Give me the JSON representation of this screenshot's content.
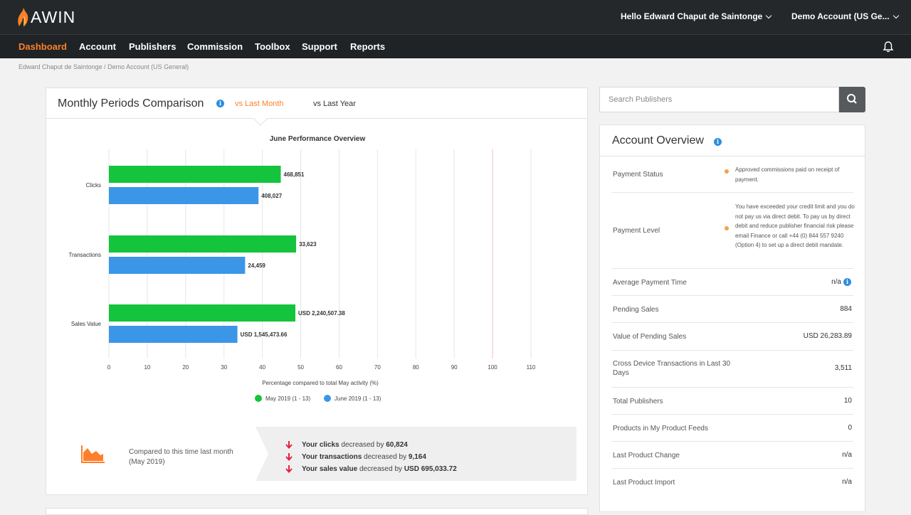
{
  "header": {
    "logo_text": "AWIN",
    "user_menu": "Hello Edward Chaput de Saintonge",
    "account_menu": "Demo Account (US Ge..."
  },
  "nav": {
    "items": [
      "Dashboard",
      "Account",
      "Publishers",
      "Commission",
      "Toolbox",
      "Support",
      "Reports"
    ],
    "active": "Dashboard"
  },
  "breadcrumb": "Edward Chaput de Saintonge / Demo Account (US General)",
  "comparison_panel": {
    "title": "Monthly Periods Comparison",
    "tabs": [
      "vs Last Month",
      "vs Last Year"
    ],
    "active_tab": "vs Last Month"
  },
  "chart_data": {
    "type": "bar",
    "orientation": "horizontal",
    "title": "June Performance Overview",
    "xlabel": "Percentage compared to total May activity (%)",
    "ylabel": "",
    "xlim": [
      0,
      110
    ],
    "xticks": [
      0,
      10,
      20,
      30,
      40,
      50,
      60,
      70,
      80,
      90,
      100,
      110
    ],
    "reference_line": 100,
    "categories": [
      "Clicks",
      "Transactions",
      "Sales Value"
    ],
    "series": [
      {
        "name": "May 2019 (1 - 13)",
        "color": "#14c43c",
        "values": [
          44.8,
          48.8,
          48.6
        ],
        "labels": [
          "468,851",
          "33,623",
          "USD 2,240,507.38"
        ]
      },
      {
        "name": "June 2019 (1 - 13)",
        "color": "#3c96e8",
        "values": [
          39.0,
          35.5,
          33.5
        ],
        "labels": [
          "408,027",
          "24,459",
          "USD 1,545,473.66"
        ]
      }
    ],
    "legend_position": "bottom",
    "grid": true
  },
  "compare_summary": {
    "text": "Compared to this time last month (May 2019)",
    "rows": [
      {
        "bold": "Your clicks",
        "mid": " decreased by ",
        "value": "60,824"
      },
      {
        "bold": "Your transactions",
        "mid": " decreased by ",
        "value": "9,164"
      },
      {
        "bold": "Your sales value",
        "mid": " decreased by ",
        "value": "USD 695,033.72"
      }
    ]
  },
  "search": {
    "placeholder": "Search Publishers"
  },
  "account_overview": {
    "title": "Account Overview",
    "payment_status_label": "Payment Status",
    "payment_status_note": "Approved commissions paid on receipt of payment.",
    "payment_level_label": "Payment Level",
    "payment_level_note": "You have exceeded your credit limit and you do not pay us via direct debit. To pay us by direct debit and reduce publisher financial risk please email Finance or call +44 (0) 844 557 9240 (Option 4) to set up a direct debit mandate.",
    "rows": [
      {
        "label": "Average Payment Time",
        "value": "n/a"
      },
      {
        "label": "Pending Sales",
        "value": "884"
      },
      {
        "label": "Value of Pending Sales",
        "value": "USD 26,283.89"
      },
      {
        "label": "Cross Device Transactions in Last 30 Days",
        "value": "3,511"
      },
      {
        "label": "Total Publishers",
        "value": "10"
      },
      {
        "label": "Products in My Product Feeds",
        "value": "0"
      },
      {
        "label": "Last Product Change",
        "value": "n/a"
      },
      {
        "label": "Last Product Import",
        "value": "n/a"
      }
    ]
  },
  "colors": {
    "accent": "#ff7f2a",
    "header_bg": "#24282b",
    "may": "#14c43c",
    "june": "#3c96e8",
    "down": "#e2233b"
  }
}
